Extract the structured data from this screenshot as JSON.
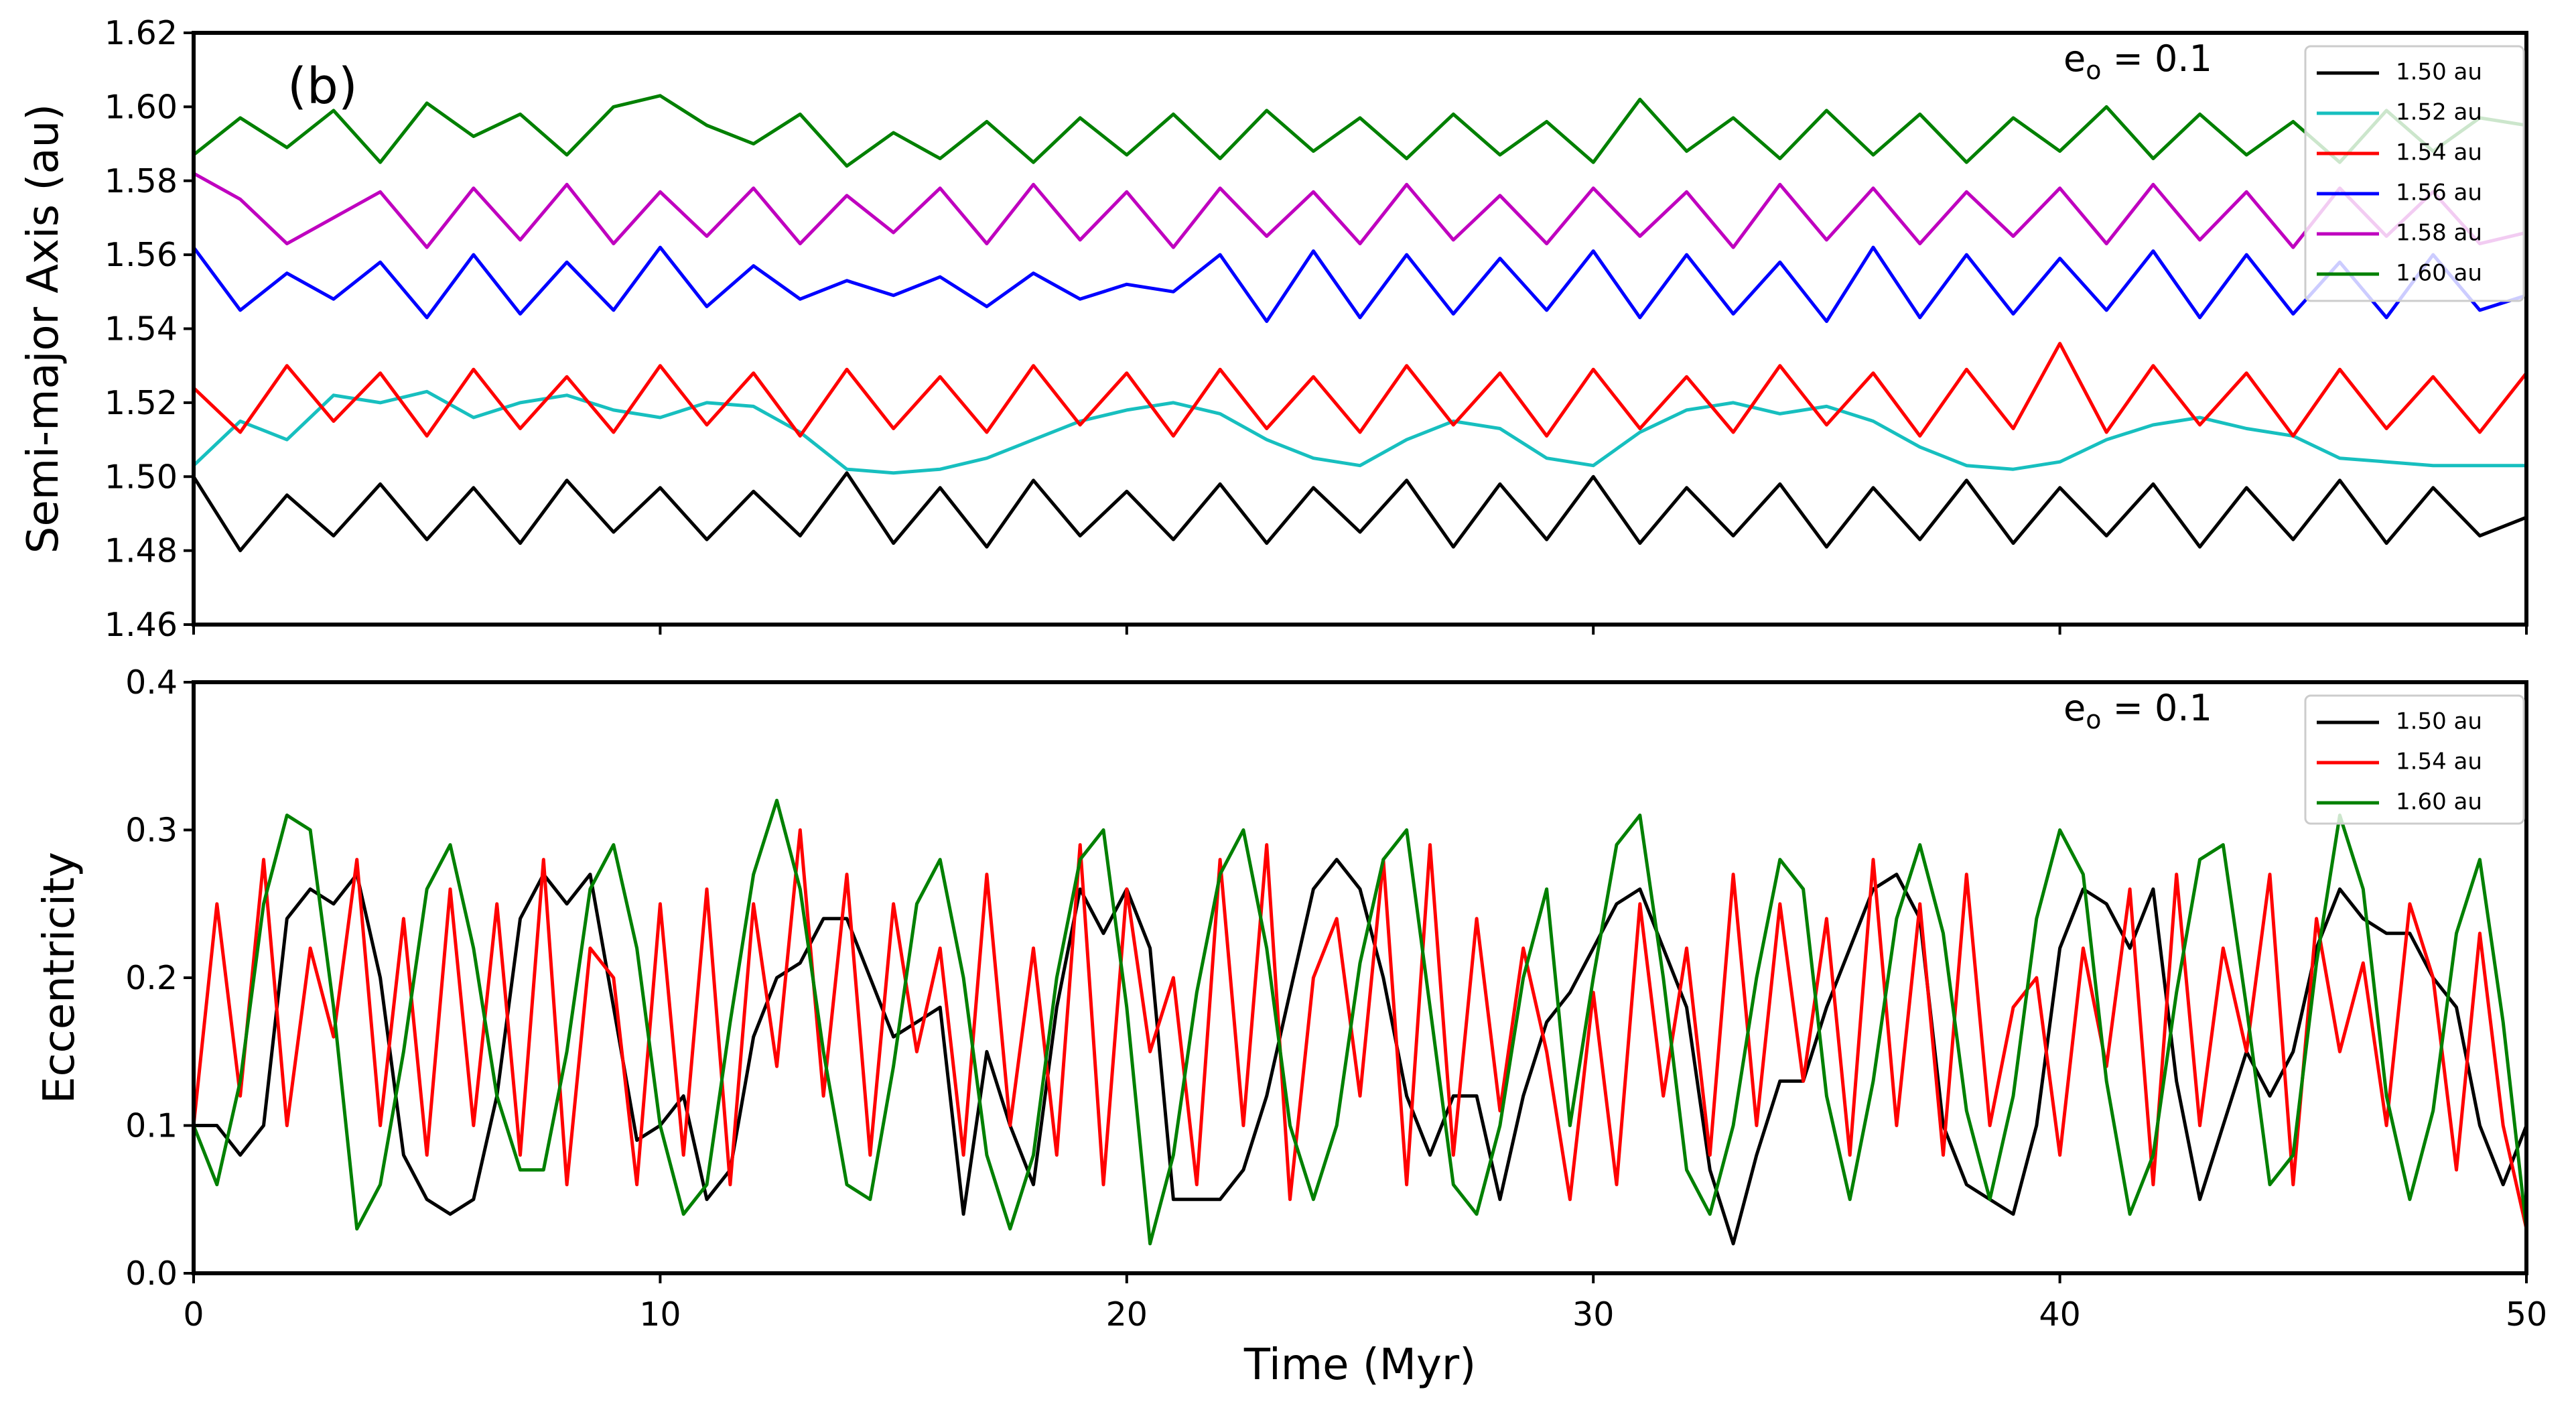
{
  "chart_data": [
    {
      "type": "line",
      "panel_label": "(b)",
      "annotation": {
        "base": "e",
        "sub": "o",
        "tail": " = 0.1"
      },
      "ylabel": "Semi-major Axis (au)",
      "x": [
        0,
        1,
        2,
        3,
        4,
        5,
        6,
        7,
        8,
        9,
        10,
        11,
        12,
        13,
        14,
        15,
        16,
        17,
        18,
        19,
        20,
        21,
        22,
        23,
        24,
        25,
        26,
        27,
        28,
        29,
        30,
        31,
        32,
        33,
        34,
        35,
        36,
        37,
        38,
        39,
        40,
        41,
        42,
        43,
        44,
        45,
        46,
        47,
        48,
        49,
        50
      ],
      "xlim": [
        0,
        50
      ],
      "xticks": [
        0,
        10,
        20,
        30,
        40,
        50
      ],
      "ylim": [
        1.46,
        1.62
      ],
      "yticks": [
        1.46,
        1.48,
        {
          "value": 1.5,
          "label": "1.50"
        },
        1.52,
        1.54,
        1.56,
        1.58,
        {
          "value": 1.6,
          "label": "1.60"
        },
        1.62
      ],
      "legend": "upper right",
      "series": [
        {
          "name": "1.50 au",
          "color": "#000000",
          "values": [
            1.5,
            1.48,
            1.495,
            1.484,
            1.498,
            1.483,
            1.497,
            1.482,
            1.499,
            1.485,
            1.497,
            1.483,
            1.496,
            1.484,
            1.501,
            1.482,
            1.497,
            1.481,
            1.499,
            1.484,
            1.496,
            1.483,
            1.498,
            1.482,
            1.497,
            1.485,
            1.499,
            1.481,
            1.498,
            1.483,
            1.5,
            1.482,
            1.497,
            1.484,
            1.498,
            1.481,
            1.497,
            1.483,
            1.499,
            1.482,
            1.497,
            1.484,
            1.498,
            1.481,
            1.497,
            1.483,
            1.499,
            1.482,
            1.497,
            1.484,
            1.489
          ]
        },
        {
          "name": "1.52 au",
          "color": "#17bfbf",
          "values": [
            1.503,
            1.515,
            1.51,
            1.522,
            1.52,
            1.523,
            1.516,
            1.52,
            1.522,
            1.518,
            1.516,
            1.52,
            1.519,
            1.512,
            1.502,
            1.501,
            1.502,
            1.505,
            1.51,
            1.515,
            1.518,
            1.52,
            1.517,
            1.51,
            1.505,
            1.503,
            1.51,
            1.515,
            1.513,
            1.505,
            1.503,
            1.512,
            1.518,
            1.52,
            1.517,
            1.519,
            1.515,
            1.508,
            1.503,
            1.502,
            1.504,
            1.51,
            1.514,
            1.516,
            1.513,
            1.511,
            1.505,
            1.504,
            1.503,
            1.503,
            1.503
          ]
        },
        {
          "name": "1.54 au",
          "color": "#ff0000",
          "values": [
            1.524,
            1.512,
            1.53,
            1.515,
            1.528,
            1.511,
            1.529,
            1.513,
            1.527,
            1.512,
            1.53,
            1.514,
            1.528,
            1.511,
            1.529,
            1.513,
            1.527,
            1.512,
            1.53,
            1.514,
            1.528,
            1.511,
            1.529,
            1.513,
            1.527,
            1.512,
            1.53,
            1.514,
            1.528,
            1.511,
            1.529,
            1.513,
            1.527,
            1.512,
            1.53,
            1.514,
            1.528,
            1.511,
            1.529,
            1.513,
            1.536,
            1.512,
            1.53,
            1.514,
            1.528,
            1.511,
            1.529,
            1.513,
            1.527,
            1.512,
            1.528
          ]
        },
        {
          "name": "1.56 au",
          "color": "#0000ff",
          "values": [
            1.562,
            1.545,
            1.555,
            1.548,
            1.558,
            1.543,
            1.56,
            1.544,
            1.558,
            1.545,
            1.562,
            1.546,
            1.557,
            1.548,
            1.553,
            1.549,
            1.554,
            1.546,
            1.555,
            1.548,
            1.552,
            1.55,
            1.56,
            1.542,
            1.561,
            1.543,
            1.56,
            1.544,
            1.559,
            1.545,
            1.561,
            1.543,
            1.56,
            1.544,
            1.558,
            1.542,
            1.562,
            1.543,
            1.56,
            1.544,
            1.559,
            1.545,
            1.561,
            1.543,
            1.56,
            1.544,
            1.558,
            1.543,
            1.56,
            1.545,
            1.549
          ]
        },
        {
          "name": "1.58 au",
          "color": "#bf00bf",
          "values": [
            1.582,
            1.575,
            1.563,
            1.57,
            1.577,
            1.562,
            1.578,
            1.564,
            1.579,
            1.563,
            1.577,
            1.565,
            1.578,
            1.563,
            1.576,
            1.566,
            1.578,
            1.563,
            1.579,
            1.564,
            1.577,
            1.562,
            1.578,
            1.565,
            1.577,
            1.563,
            1.579,
            1.564,
            1.576,
            1.563,
            1.578,
            1.565,
            1.577,
            1.562,
            1.579,
            1.564,
            1.578,
            1.563,
            1.577,
            1.565,
            1.578,
            1.563,
            1.579,
            1.564,
            1.577,
            1.562,
            1.578,
            1.565,
            1.577,
            1.563,
            1.566
          ]
        },
        {
          "name": "1.60 au",
          "color": "#008000",
          "values": [
            1.587,
            1.597,
            1.589,
            1.599,
            1.585,
            1.601,
            1.592,
            1.598,
            1.587,
            1.6,
            1.603,
            1.595,
            1.59,
            1.598,
            1.584,
            1.593,
            1.586,
            1.596,
            1.585,
            1.597,
            1.587,
            1.598,
            1.586,
            1.599,
            1.588,
            1.597,
            1.586,
            1.598,
            1.587,
            1.596,
            1.585,
            1.602,
            1.588,
            1.597,
            1.586,
            1.599,
            1.587,
            1.598,
            1.585,
            1.597,
            1.588,
            1.6,
            1.586,
            1.598,
            1.587,
            1.596,
            1.585,
            1.599,
            1.588,
            1.597,
            1.595
          ]
        }
      ]
    },
    {
      "type": "line",
      "annotation": {
        "base": "e",
        "sub": "o",
        "tail": " = 0.1"
      },
      "xlabel": "Time (Myr)",
      "ylabel": "Eccentricity",
      "x": [
        0,
        0.5,
        1,
        1.5,
        2,
        2.5,
        3,
        3.5,
        4,
        4.5,
        5,
        5.5,
        6,
        6.5,
        7,
        7.5,
        8,
        8.5,
        9,
        9.5,
        10,
        10.5,
        11,
        11.5,
        12,
        12.5,
        13,
        13.5,
        14,
        14.5,
        15,
        15.5,
        16,
        16.5,
        17,
        17.5,
        18,
        18.5,
        19,
        19.5,
        20,
        20.5,
        21,
        21.5,
        22,
        22.5,
        23,
        23.5,
        24,
        24.5,
        25,
        25.5,
        26,
        26.5,
        27,
        27.5,
        28,
        28.5,
        29,
        29.5,
        30,
        30.5,
        31,
        31.5,
        32,
        32.5,
        33,
        33.5,
        34,
        34.5,
        35,
        35.5,
        36,
        36.5,
        37,
        37.5,
        38,
        38.5,
        39,
        39.5,
        40,
        40.5,
        41,
        41.5,
        42,
        42.5,
        43,
        43.5,
        44,
        44.5,
        45,
        45.5,
        46,
        46.5,
        47,
        47.5,
        48,
        48.5,
        49,
        49.5,
        50
      ],
      "xlim": [
        0,
        50
      ],
      "xticks": [
        0,
        10,
        20,
        30,
        40,
        50
      ],
      "ylim": [
        0,
        0.4
      ],
      "yticks": [
        {
          "value": 0,
          "label": "0.0"
        },
        0.1,
        0.2,
        0.3,
        0.4
      ],
      "legend": "upper right",
      "series": [
        {
          "name": "1.50 au",
          "color": "#000000",
          "values": [
            0.1,
            0.1,
            0.08,
            0.1,
            0.24,
            0.26,
            0.25,
            0.27,
            0.2,
            0.08,
            0.05,
            0.04,
            0.05,
            0.12,
            0.24,
            0.27,
            0.25,
            0.27,
            0.18,
            0.09,
            0.1,
            0.12,
            0.05,
            0.07,
            0.16,
            0.2,
            0.21,
            0.24,
            0.24,
            0.2,
            0.16,
            0.17,
            0.18,
            0.04,
            0.15,
            0.1,
            0.06,
            0.18,
            0.26,
            0.23,
            0.26,
            0.22,
            0.05,
            0.05,
            0.05,
            0.07,
            0.12,
            0.19,
            0.26,
            0.28,
            0.26,
            0.2,
            0.12,
            0.08,
            0.12,
            0.12,
            0.05,
            0.12,
            0.17,
            0.19,
            0.22,
            0.25,
            0.26,
            0.22,
            0.18,
            0.07,
            0.02,
            0.08,
            0.13,
            0.13,
            0.18,
            0.22,
            0.26,
            0.27,
            0.24,
            0.1,
            0.06,
            0.05,
            0.04,
            0.1,
            0.22,
            0.26,
            0.25,
            0.22,
            0.26,
            0.13,
            0.05,
            0.1,
            0.15,
            0.12,
            0.15,
            0.22,
            0.26,
            0.24,
            0.23,
            0.23,
            0.2,
            0.18,
            0.1,
            0.06,
            0.1
          ]
        },
        {
          "name": "1.54 au",
          "color": "#ff0000",
          "values": [
            0.1,
            0.25,
            0.12,
            0.28,
            0.1,
            0.22,
            0.16,
            0.28,
            0.1,
            0.24,
            0.08,
            0.26,
            0.1,
            0.25,
            0.08,
            0.28,
            0.06,
            0.22,
            0.2,
            0.06,
            0.25,
            0.08,
            0.26,
            0.06,
            0.25,
            0.14,
            0.3,
            0.12,
            0.27,
            0.08,
            0.25,
            0.15,
            0.22,
            0.08,
            0.27,
            0.1,
            0.22,
            0.08,
            0.29,
            0.06,
            0.26,
            0.15,
            0.2,
            0.06,
            0.28,
            0.1,
            0.29,
            0.05,
            0.2,
            0.24,
            0.12,
            0.28,
            0.06,
            0.29,
            0.08,
            0.24,
            0.11,
            0.22,
            0.15,
            0.05,
            0.19,
            0.06,
            0.25,
            0.12,
            0.22,
            0.08,
            0.27,
            0.1,
            0.25,
            0.13,
            0.24,
            0.08,
            0.28,
            0.1,
            0.25,
            0.08,
            0.27,
            0.1,
            0.18,
            0.2,
            0.08,
            0.22,
            0.14,
            0.26,
            0.06,
            0.27,
            0.1,
            0.22,
            0.15,
            0.27,
            0.06,
            0.24,
            0.15,
            0.21,
            0.1,
            0.25,
            0.2,
            0.07,
            0.23,
            0.1,
            0.03
          ]
        },
        {
          "name": "1.60 au",
          "color": "#008000",
          "values": [
            0.1,
            0.06,
            0.13,
            0.25,
            0.31,
            0.3,
            0.18,
            0.03,
            0.06,
            0.15,
            0.26,
            0.29,
            0.22,
            0.12,
            0.07,
            0.07,
            0.15,
            0.26,
            0.29,
            0.22,
            0.1,
            0.04,
            0.06,
            0.17,
            0.27,
            0.32,
            0.26,
            0.15,
            0.06,
            0.05,
            0.14,
            0.25,
            0.28,
            0.2,
            0.08,
            0.03,
            0.08,
            0.2,
            0.28,
            0.3,
            0.18,
            0.02,
            0.08,
            0.19,
            0.27,
            0.3,
            0.22,
            0.1,
            0.05,
            0.1,
            0.21,
            0.28,
            0.3,
            0.18,
            0.06,
            0.04,
            0.1,
            0.2,
            0.26,
            0.1,
            0.2,
            0.29,
            0.31,
            0.2,
            0.07,
            0.04,
            0.1,
            0.2,
            0.28,
            0.26,
            0.12,
            0.05,
            0.13,
            0.24,
            0.29,
            0.23,
            0.11,
            0.05,
            0.12,
            0.24,
            0.3,
            0.27,
            0.13,
            0.04,
            0.08,
            0.19,
            0.28,
            0.29,
            0.18,
            0.06,
            0.08,
            0.21,
            0.31,
            0.26,
            0.12,
            0.05,
            0.11,
            0.23,
            0.28,
            0.17,
            0.03
          ]
        }
      ]
    }
  ]
}
